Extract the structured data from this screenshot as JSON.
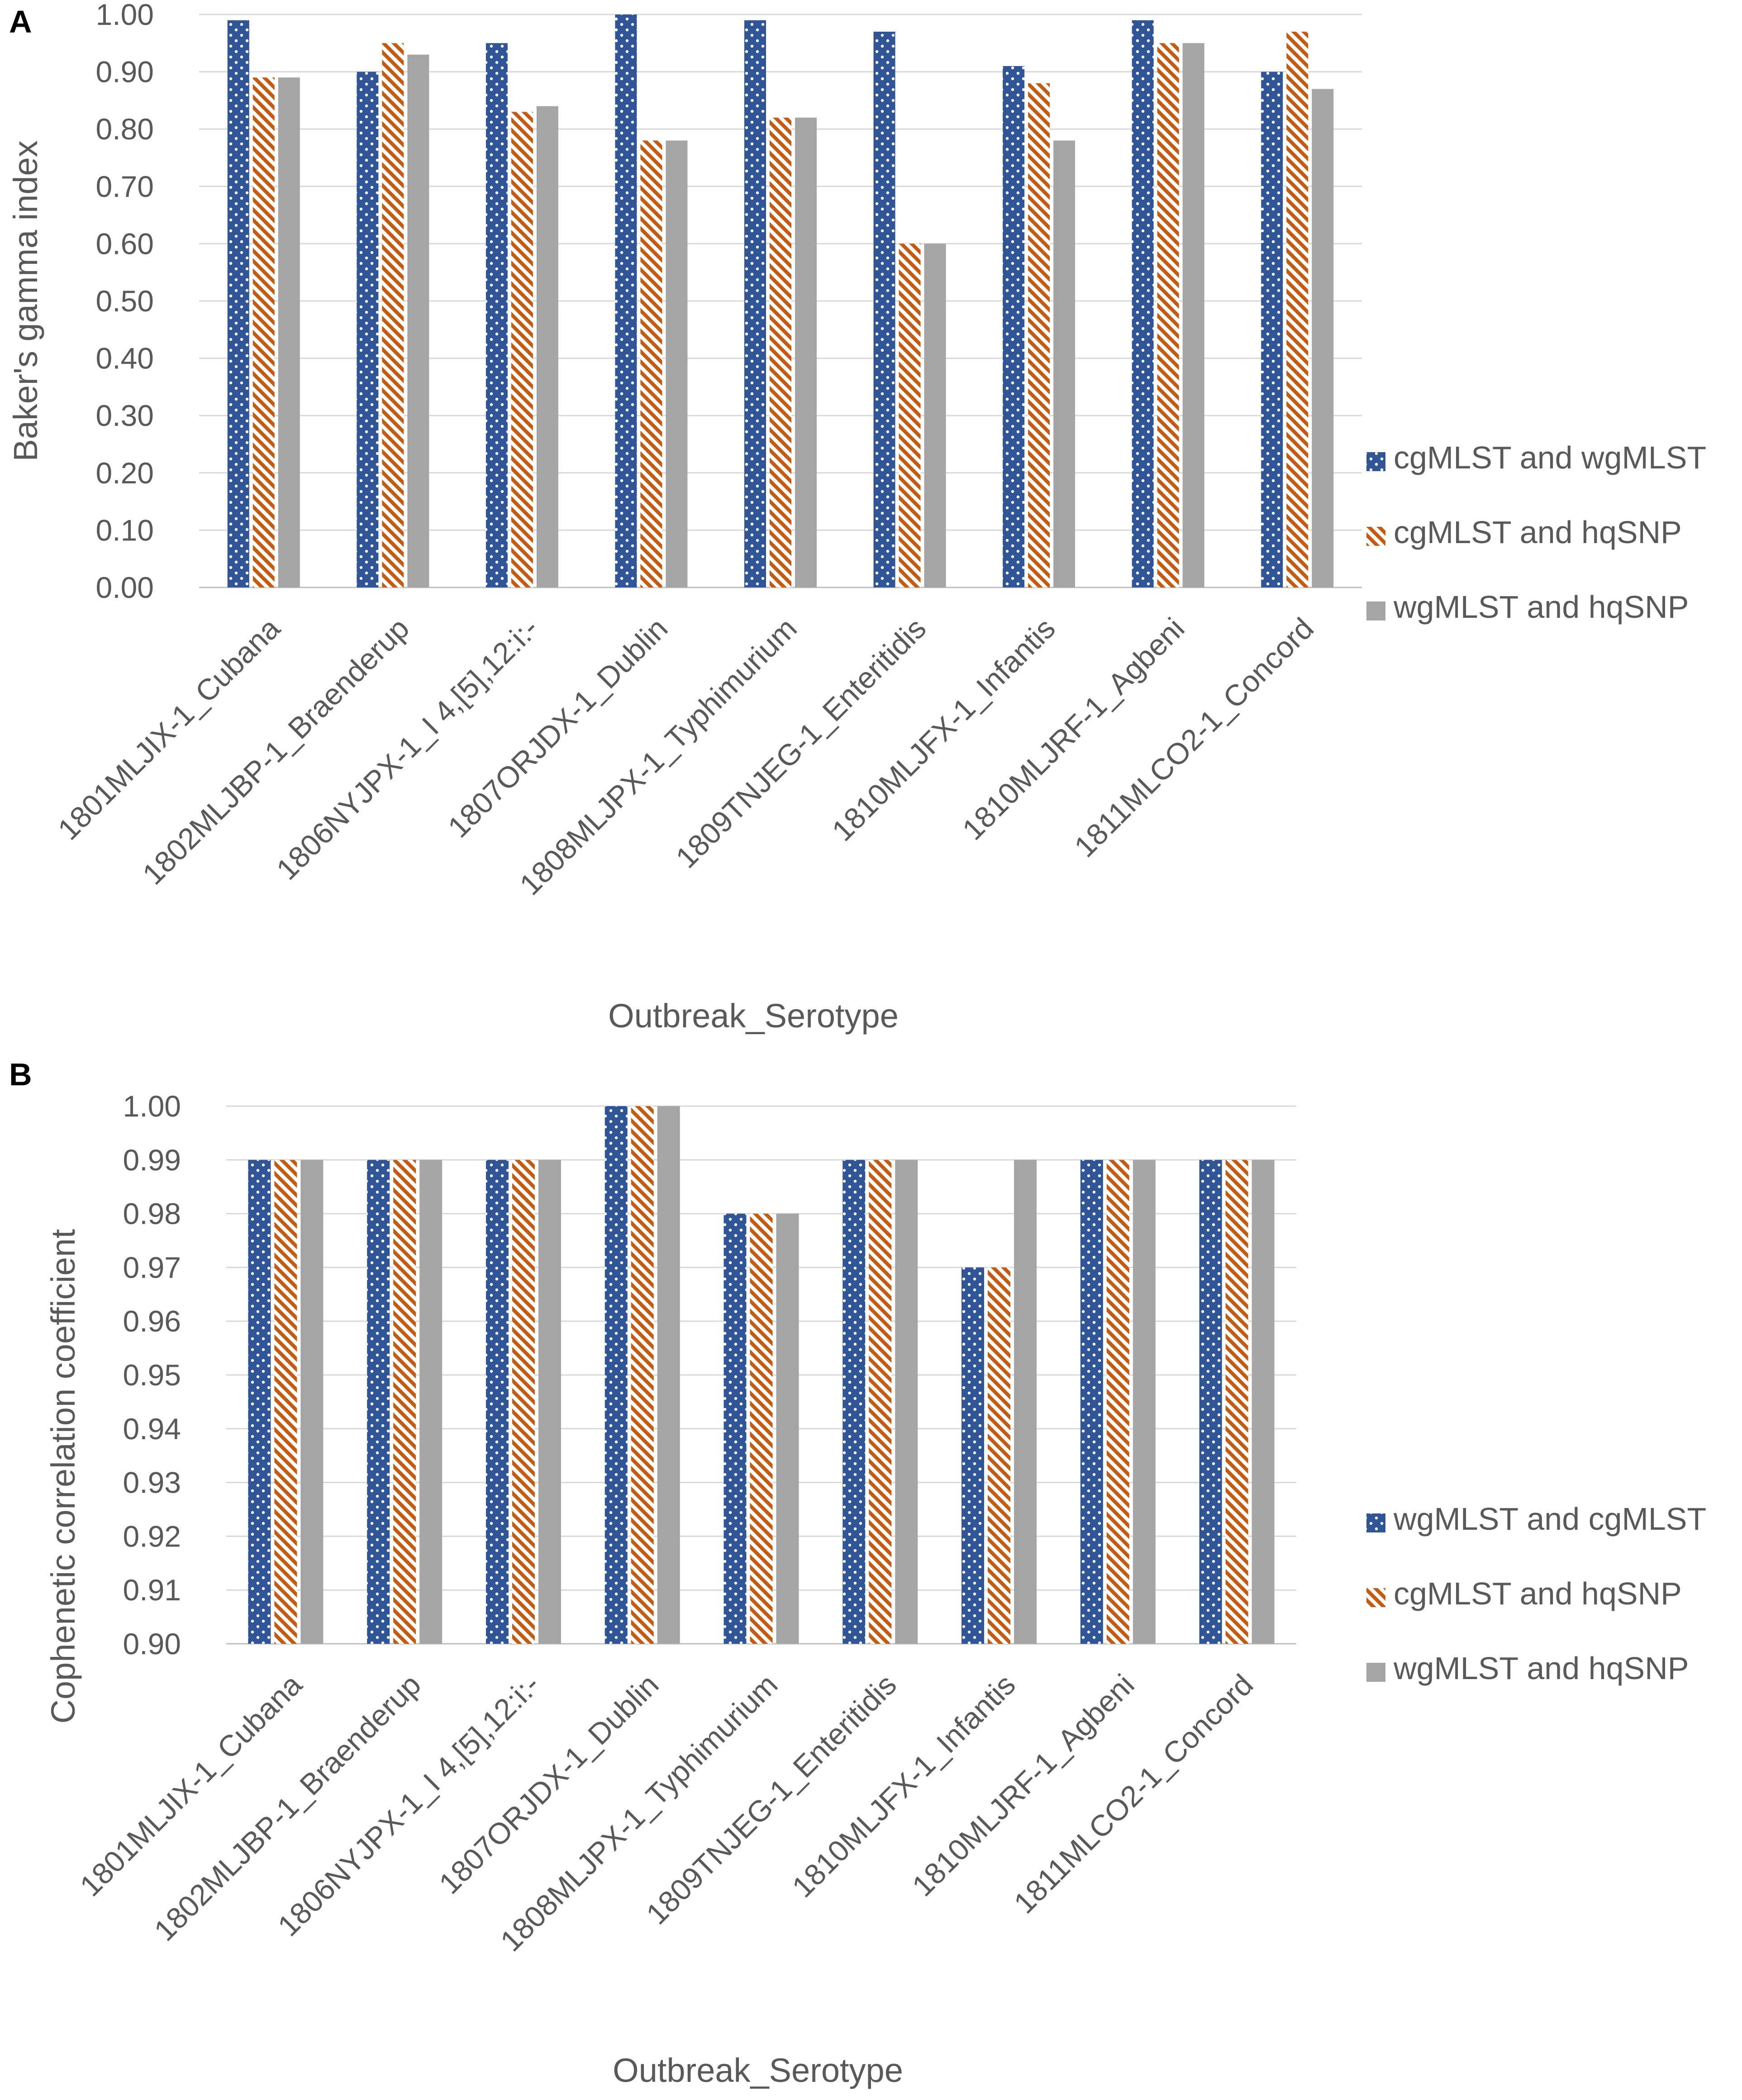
{
  "colors": {
    "blue": "#2F5597",
    "orange": "#C55A11",
    "gray": "#A5A5A5",
    "grid": "#D9D9D9",
    "text": "#595959"
  },
  "chart_data": [
    {
      "panel_label": "A",
      "type": "bar",
      "title": "",
      "xlabel": "Outbreak_Serotype",
      "ylabel": "Baker's gamma index",
      "ylim": [
        0.0,
        1.0
      ],
      "ytick_step": 0.1,
      "ytick_decimals": 2,
      "yticks": [
        "0.00",
        "0.10",
        "0.20",
        "0.30",
        "0.40",
        "0.50",
        "0.60",
        "0.70",
        "0.80",
        "0.90",
        "1.00"
      ],
      "grid": true,
      "legend_position": "right",
      "categories": [
        "1801MLJIX-1_Cubana",
        "1802MLJBP-1_Braenderup",
        "1806NYJPX-1_I 4,[5],12:i:-",
        "1807ORJDX-1_Dublin",
        "1808MLJPX-1_Typhimurium",
        "1809TNJEG-1_Enteritidis",
        "1810MLJFX-1_Infantis",
        "1810MLJRF-1_Agbeni",
        "1811MLCO2-1_Concord"
      ],
      "series": [
        {
          "name": "cgMLST and wgMLST",
          "pattern": "dots",
          "values": [
            0.99,
            0.9,
            0.95,
            1.0,
            0.99,
            0.97,
            0.91,
            0.99,
            0.9
          ]
        },
        {
          "name": "cgMLST and hqSNP",
          "pattern": "stripes",
          "values": [
            0.89,
            0.95,
            0.83,
            0.78,
            0.82,
            0.6,
            0.88,
            0.95,
            0.97
          ]
        },
        {
          "name": "wgMLST and hqSNP",
          "pattern": "solid",
          "values": [
            0.89,
            0.93,
            0.84,
            0.78,
            0.82,
            0.6,
            0.78,
            0.95,
            0.87
          ]
        }
      ]
    },
    {
      "panel_label": "B",
      "type": "bar",
      "title": "",
      "xlabel": "Outbreak_Serotype",
      "ylabel": "Cophenetic correlation coefficient",
      "ylim": [
        0.9,
        1.0
      ],
      "ytick_step": 0.01,
      "ytick_decimals": 2,
      "yticks": [
        "0.90",
        "0.91",
        "0.92",
        "0.93",
        "0.94",
        "0.95",
        "0.96",
        "0.97",
        "0.98",
        "0.99",
        "1.00"
      ],
      "grid": true,
      "legend_position": "right",
      "categories": [
        "1801MLJIX-1_Cubana",
        "1802MLJBP-1_Braenderup",
        "1806NYJPX-1_I 4,[5],12:i:-",
        "1807ORJDX-1_Dublin",
        "1808MLJPX-1_Typhimurium",
        "1809TNJEG-1_Enteritidis",
        "1810MLJFX-1_Infantis",
        "1810MLJRF-1_Agbeni",
        "1811MLCO2-1_Concord"
      ],
      "series": [
        {
          "name": "wgMLST and cgMLST",
          "pattern": "dots",
          "values": [
            0.99,
            0.99,
            0.99,
            1.0,
            0.98,
            0.99,
            0.97,
            0.99,
            0.99
          ]
        },
        {
          "name": "cgMLST and hqSNP",
          "pattern": "stripes",
          "values": [
            0.99,
            0.99,
            0.99,
            1.0,
            0.98,
            0.99,
            0.97,
            0.99,
            0.99
          ]
        },
        {
          "name": "wgMLST and hqSNP",
          "pattern": "solid",
          "values": [
            0.99,
            0.99,
            0.99,
            1.0,
            0.98,
            0.99,
            0.99,
            0.99,
            0.99
          ]
        }
      ]
    }
  ]
}
